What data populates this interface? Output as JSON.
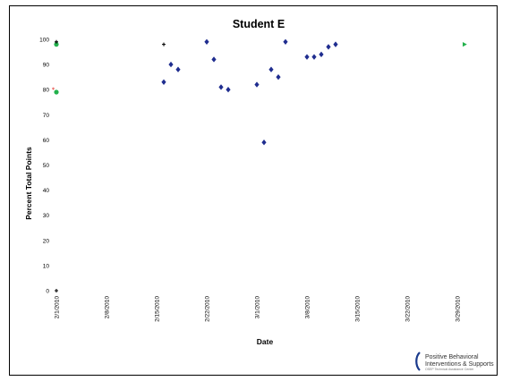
{
  "chart_data": {
    "type": "scatter",
    "title": "Student E",
    "xlabel": "Date",
    "ylabel": "Percent Total Points",
    "xlim": [
      "2010-02-01",
      "2010-04-02"
    ],
    "ylim": [
      0,
      100
    ],
    "yticks": [
      0,
      10,
      20,
      30,
      40,
      50,
      60,
      70,
      80,
      90,
      100
    ],
    "xticks": [
      "2/1/2010",
      "2/8/2010",
      "2/15/2010",
      "2/22/2010",
      "3/1/2010",
      "3/8/2010",
      "3/15/2010",
      "3/22/2010",
      "3/29/2010"
    ],
    "xtick_dates": [
      "2010-02-01",
      "2010-02-08",
      "2010-02-15",
      "2010-02-22",
      "2010-03-01",
      "2010-03-08",
      "2010-03-15",
      "2010-03-22",
      "2010-03-29"
    ],
    "grid": false,
    "series": [
      {
        "marker": "diamond",
        "color": "#1f2d8f",
        "points": [
          {
            "x": "2010-02-16",
            "y": 83
          },
          {
            "x": "2010-02-17",
            "y": 90
          },
          {
            "x": "2010-02-18",
            "y": 88
          },
          {
            "x": "2010-02-22",
            "y": 99
          },
          {
            "x": "2010-02-23",
            "y": 92
          },
          {
            "x": "2010-02-24",
            "y": 81
          },
          {
            "x": "2010-02-25",
            "y": 80
          },
          {
            "x": "2010-03-01",
            "y": 82
          },
          {
            "x": "2010-03-02",
            "y": 59
          },
          {
            "x": "2010-03-03",
            "y": 88
          },
          {
            "x": "2010-03-04",
            "y": 85
          },
          {
            "x": "2010-03-05",
            "y": 99
          },
          {
            "x": "2010-03-08",
            "y": 93
          },
          {
            "x": "2010-03-09",
            "y": 93
          },
          {
            "x": "2010-03-10",
            "y": 94
          },
          {
            "x": "2010-03-11",
            "y": 97
          },
          {
            "x": "2010-03-12",
            "y": 98
          }
        ]
      },
      {
        "marker": "circle",
        "color": "#22b14c",
        "points": [
          {
            "x": "2010-02-01",
            "y": 79
          },
          {
            "x": "2010-02-01",
            "y": 98
          }
        ]
      },
      {
        "marker": "triangle",
        "color": "#22b14c",
        "points": [
          {
            "x": "2010-03-30",
            "y": 98
          }
        ]
      },
      {
        "marker": "star",
        "color": "#e0241b",
        "points": [
          {
            "x": "2010-02-01",
            "y": 80
          }
        ]
      },
      {
        "marker": "plus",
        "color": "#000000",
        "points": [
          {
            "x": "2010-02-01",
            "y": 99
          },
          {
            "x": "2010-02-16",
            "y": 98
          },
          {
            "x": "2010-02-01",
            "y": 0
          }
        ]
      }
    ]
  },
  "logo": {
    "line1": "Positive Behavioral",
    "line2": "Interventions & Supports",
    "line3": "OSEP Technical Assistance Center"
  }
}
